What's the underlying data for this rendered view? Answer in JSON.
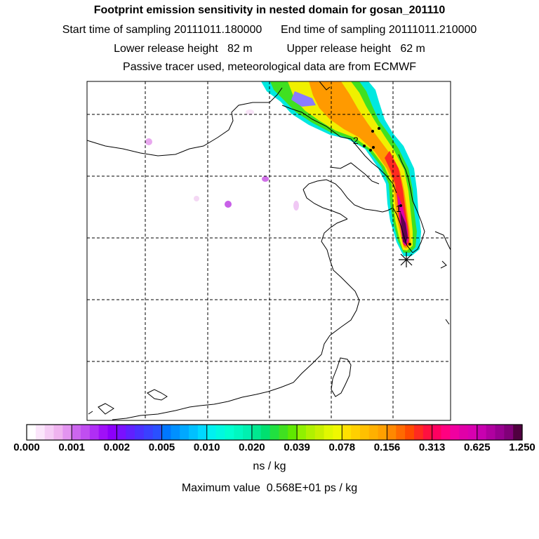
{
  "header": {
    "title": "Footprint emission sensitivity in nested domain for gosan_201110",
    "line2": "Start time of sampling 20111011.180000      End time of sampling 20111011.210000",
    "line3": "Lower release height   82 m           Upper release height   62 m",
    "line4": "Passive tracer used, meteorological data are from ECMWF"
  },
  "map": {
    "markers": [
      "1",
      "2"
    ],
    "receptor_symbol": "star-icon",
    "grid": true
  },
  "colorbar": {
    "tick_labels": [
      "0.000",
      "0.001",
      "0.002",
      "0.005",
      "0.010",
      "0.020",
      "0.039",
      "0.078",
      "0.156",
      "0.313",
      "0.625",
      "1.250"
    ],
    "colors": [
      "#ffffff",
      "#fbe6fb",
      "#f5ccf5",
      "#efb3ef",
      "#e394f0",
      "#cc66ee",
      "#c04ef0",
      "#b02ef5",
      "#a010f8",
      "#8c00fa",
      "#7a10ff",
      "#6020ff",
      "#4a30ff",
      "#3a40ff",
      "#2a50ff",
      "#0077ff",
      "#0090ff",
      "#00a8ff",
      "#00c0ff",
      "#00d8ff",
      "#00f0f0",
      "#00f8e0",
      "#00ffd0",
      "#00f8c0",
      "#00f0b0",
      "#00e890",
      "#00e070",
      "#20e040",
      "#40e020",
      "#60e800",
      "#90f000",
      "#b0f000",
      "#c8f000",
      "#e0f800",
      "#f0f800",
      "#ffe000",
      "#ffd000",
      "#ffc000",
      "#ffb000",
      "#ffa000",
      "#ff8800",
      "#ff6a00",
      "#ff4a00",
      "#ff2a20",
      "#ff1040",
      "#ff0060",
      "#ff0080",
      "#f000a0",
      "#e000a8",
      "#d800b0",
      "#c800b0",
      "#b000a0",
      "#980090",
      "#800078",
      "#500040"
    ],
    "units": "ns / kg"
  },
  "footer": {
    "max_value": "Maximum value  0.568E+01 ps / kg"
  }
}
